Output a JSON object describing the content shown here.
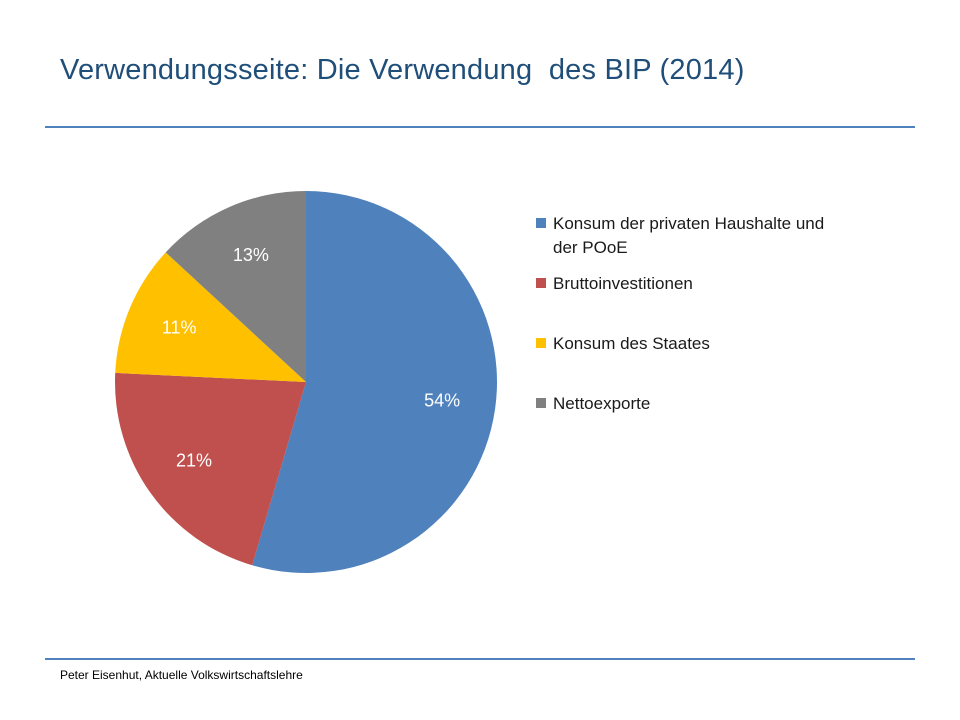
{
  "slide": {
    "title": "Verwendungsseite: Die Verwendung  des BIP (2014)",
    "footer": "Peter Eisenhut, Aktuelle Volkswirtschaftslehre",
    "accent_color": "#4f81bd",
    "title_color": "#1f4e79"
  },
  "chart_data": {
    "type": "pie",
    "title": "",
    "categories": [
      "Konsum der privaten Haushalte und der POoE",
      "Bruttoinvestitionen",
      "Konsum des Staates",
      "Nettoexporte"
    ],
    "values": [
      54,
      21,
      11,
      13
    ],
    "labels": [
      "54%",
      "21%",
      "11%",
      "13%"
    ],
    "colors": [
      "#4f81bd",
      "#c0504d",
      "#ffc000",
      "#808080"
    ],
    "label_colors": [
      "#ffffff",
      "#ffffff",
      "#ffffff",
      "#ffffff"
    ],
    "start_angle_deg": 0,
    "direction": "clockwise",
    "legend_position": "right"
  }
}
